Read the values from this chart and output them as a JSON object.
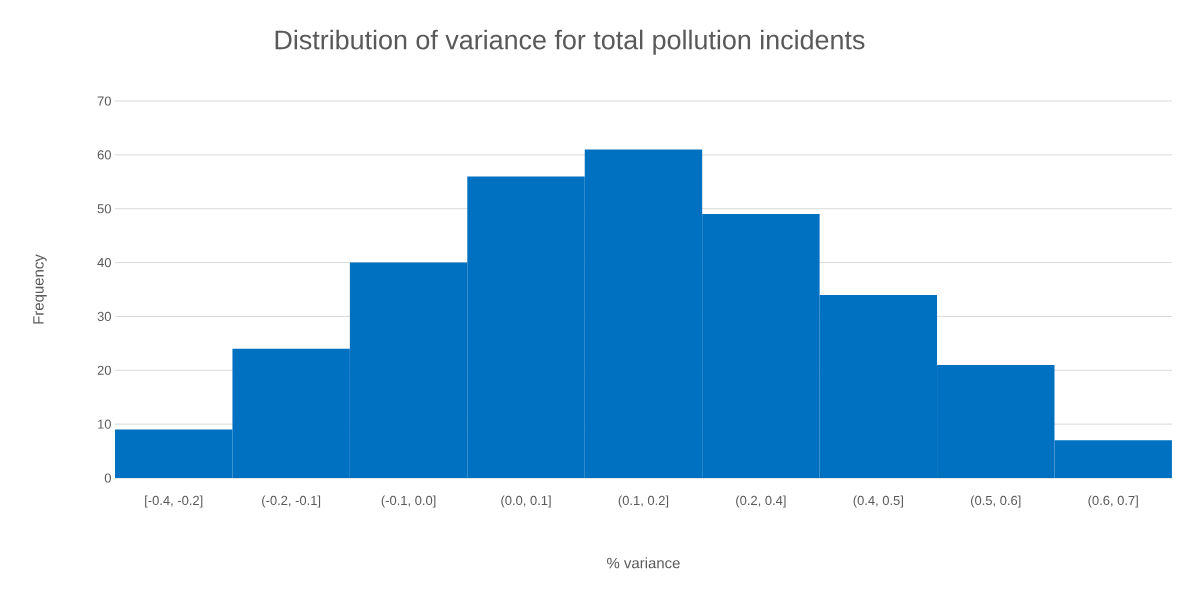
{
  "chart_data": {
    "type": "bar",
    "title": "Distribution of variance for total pollution incidents",
    "xlabel": "% variance",
    "ylabel": "Frequency",
    "categories": [
      "[-0.4, -0.2]",
      "(-0.2, -0.1]",
      "(-0.1, 0.0]",
      "(0.0, 0.1]",
      "(0.1, 0.2]",
      "(0.2, 0.4]",
      "(0.4, 0.5]",
      "(0.5, 0.6]",
      "(0.6, 0.7]"
    ],
    "values": [
      9,
      24,
      40,
      56,
      61,
      49,
      34,
      21,
      7
    ],
    "color": "#0070c0",
    "ylim": [
      0,
      70
    ],
    "yticks": [
      0,
      10,
      20,
      30,
      40,
      50,
      60,
      70
    ],
    "grid": "y"
  }
}
